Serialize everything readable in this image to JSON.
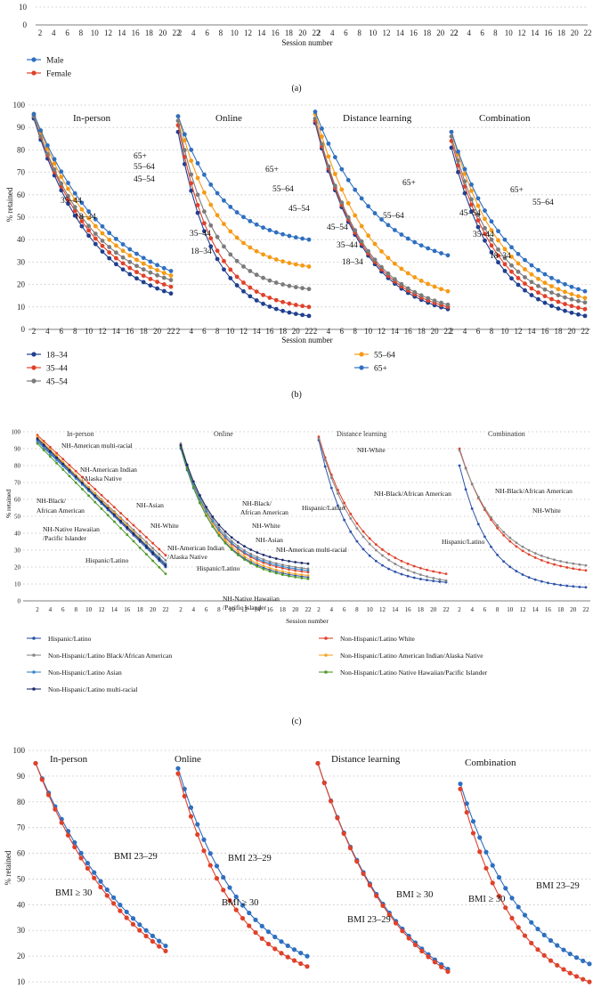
{
  "chart_data": [
    {
      "id": "a",
      "type": "line",
      "caption": "(a)",
      "xlabel": "Session number",
      "visible_y_ticks": [
        "10",
        "0"
      ],
      "x_ticks": [
        2,
        4,
        6,
        8,
        10,
        12,
        14,
        16,
        18,
        20,
        22
      ],
      "legend": [
        {
          "name": "Male",
          "color": "#2e6fc0"
        },
        {
          "name": "Female",
          "color": "#e0412a"
        }
      ]
    },
    {
      "id": "b",
      "type": "line",
      "caption": "(b)",
      "title_panels": [
        "In-person",
        "Online",
        "Distance learning",
        "Combination"
      ],
      "xlabel": "Session number",
      "ylabel": "% retained",
      "ylim": [
        0,
        100
      ],
      "y_ticks": [
        0,
        10,
        20,
        30,
        40,
        50,
        60,
        70,
        80,
        90,
        100
      ],
      "x_ticks": [
        2,
        4,
        6,
        8,
        10,
        12,
        14,
        16,
        18,
        20,
        22
      ],
      "series": [
        {
          "name": "18–34",
          "color": "#1f3f8f"
        },
        {
          "name": "35–44",
          "color": "#e0412a"
        },
        {
          "name": "45–54",
          "color": "#7b7b7b"
        },
        {
          "name": "55–64",
          "color": "#f59a14"
        },
        {
          "name": "65+",
          "color": "#2e6fc0"
        }
      ],
      "panels": [
        {
          "name": "In-person",
          "start": {
            "18–34": 94,
            "35–44": 95,
            "45–54": 95,
            "55–64": 96,
            "65+": 96
          },
          "end": {
            "18–34": 16,
            "35–44": 19,
            "45–54": 22,
            "55–64": 24,
            "65+": 26
          },
          "shape": 1.05,
          "labels": [
            "65+",
            "55–64",
            "45–54",
            "35–44",
            "18–34"
          ]
        },
        {
          "name": "Online",
          "start": {
            "18–34": 88,
            "35–44": 91,
            "45–54": 93,
            "55–64": 95,
            "65+": 95
          },
          "end": {
            "18–34": 6,
            "35–44": 10,
            "45–54": 18,
            "55–64": 28,
            "65+": 40
          },
          "shape": 1.7,
          "labels": [
            "65+",
            "55–64",
            "45–54",
            "35–44",
            "18–34"
          ]
        },
        {
          "name": "Distance learning",
          "start": {
            "18–34": 92,
            "35–44": 93,
            "45–54": 94,
            "55–64": 96,
            "65+": 97
          },
          "end": {
            "18–34": 9,
            "35–44": 10,
            "45–54": 11,
            "55–64": 17,
            "65+": 33
          },
          "shape": 1.25,
          "labels": [
            "65+",
            "55–64",
            "45–54",
            "35–44",
            "18–34"
          ]
        },
        {
          "name": "Combination",
          "start": {
            "18–34": 81,
            "35–44": 84,
            "45–54": 86,
            "55–64": 88,
            "65+": 88
          },
          "end": {
            "18–34": 6,
            "35–44": 9,
            "45–54": 12,
            "55–64": 14,
            "65+": 17
          },
          "shape": 1.35,
          "labels": [
            "65+",
            "55–64",
            "45–54",
            "35–44",
            "18–34"
          ]
        }
      ]
    },
    {
      "id": "c",
      "type": "line",
      "caption": "(c)",
      "title_panels": [
        "In-person",
        "Online",
        "Distance learning",
        "Combination"
      ],
      "xlabel": "Session number",
      "ylabel": "% retained",
      "ylim": [
        0,
        100
      ],
      "y_ticks": [
        0,
        10,
        20,
        30,
        40,
        50,
        60,
        70,
        80,
        90,
        100
      ],
      "x_ticks": [
        2,
        4,
        6,
        8,
        10,
        12,
        14,
        16,
        18,
        20,
        22
      ],
      "series": [
        {
          "name": "Hispanic/Latino",
          "color": "#2d52a8"
        },
        {
          "name": "Non-Hispanic/Latino White",
          "color": "#e0412a"
        },
        {
          "name": "Non-Hispanic/Latino Black/African American",
          "color": "#888888"
        },
        {
          "name": "Non-Hispanic/Latino American Indian/Alaska Native",
          "color": "#f5a623"
        },
        {
          "name": "Non-Hispanic/Latino Asian",
          "color": "#3a86c8"
        },
        {
          "name": "Non-Hispanic/Latino Native Hawaiian/Pacific Islander",
          "color": "#4f9a2a"
        },
        {
          "name": "Non-Hispanic/Latino multi-racial",
          "color": "#1b2a6b"
        }
      ],
      "panel_labels": [
        [
          "NH-American multi-racial",
          "NH-American Indian",
          "/Alaska Native",
          "NH-Asian",
          "NH-Black/",
          "African American",
          "NH-White",
          "NH-Native Hawaiian",
          "/Pacific Islander",
          "Hispanic/Latino"
        ],
        [
          "NH-Black/",
          "African American",
          "NH-White",
          "NH-Asian",
          "NH-American Indian",
          "/Alaska Native",
          "Hispanic/Latino",
          "NH-American multi-racial",
          "NH-Native Hawaiian",
          "/Pacific Islander"
        ],
        [
          "NH-White",
          "NH-Black/African American",
          "Hispanic/Latino"
        ],
        [
          "NH-Black/African American",
          "NH-White",
          "Hispanic/Latino"
        ]
      ]
    },
    {
      "id": "d",
      "type": "line",
      "title_panels": [
        "In-person",
        "Online",
        "Distance learning",
        "Combination"
      ],
      "ylabel": "% retained",
      "y_ticks": [
        100,
        90,
        80,
        70,
        60,
        50,
        40,
        30,
        20,
        10
      ],
      "series": [
        {
          "name": "BMI 23–29",
          "color": "#2e6fc0"
        },
        {
          "name": "BMI ≥ 30",
          "color": "#e0412a"
        }
      ],
      "panel_labels": [
        [
          "BMI 23–29",
          "BMI ≥ 30"
        ],
        [
          "BMI 23–29",
          "BMI ≥ 30"
        ],
        [
          "BMI ≥ 30",
          "BMI 23–29"
        ],
        [
          "BMI 23–29",
          "BMI ≥ 30"
        ]
      ]
    }
  ]
}
